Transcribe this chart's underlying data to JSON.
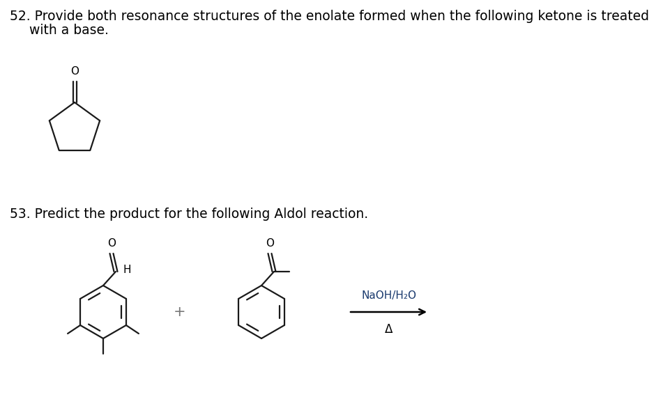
{
  "bg_color": "#ffffff",
  "text_color": "#000000",
  "line_color": "#1a1a1a",
  "q52_number": "52.",
  "q52_text": " Provide both resonance structures of the enolate formed when the following ketone is treated",
  "q52_text2": "with a base.",
  "q53_number": "53.",
  "q53_text": " Predict the product for the following Aldol reaction.",
  "naoh_text": "NaOH/H₂O",
  "delta_text": "Δ",
  "plus_sign": "+",
  "h_label": "H",
  "font_size_main": 13.5,
  "font_size_label": 11,
  "line_width": 1.6
}
